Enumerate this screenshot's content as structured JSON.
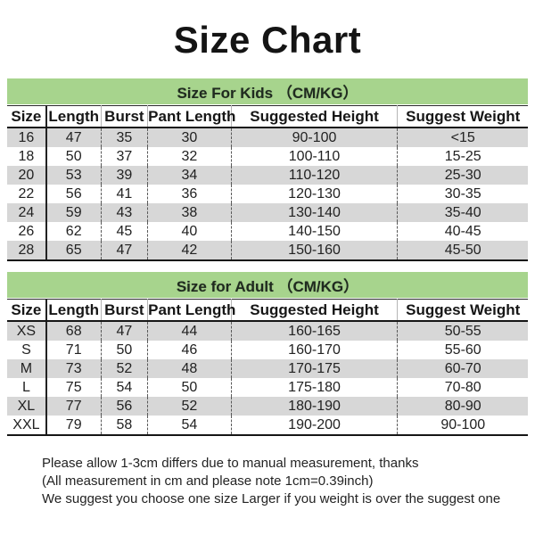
{
  "page": {
    "title": "Size Chart"
  },
  "colors": {
    "section_header_bg": "#a7d48d",
    "row_stripe_bg": "#d7d7d7",
    "text": "#1b1b1b"
  },
  "tables": [
    {
      "id": "kids",
      "section_title": "Size For Kids （CM/KG）",
      "columns": [
        "Size",
        "Length",
        "Burst",
        "Pant Length",
        "Suggested Height",
        "Suggest Weight"
      ],
      "rows": [
        [
          "16",
          "47",
          "35",
          "30",
          "90-100",
          "<15"
        ],
        [
          "18",
          "50",
          "37",
          "32",
          "100-110",
          "15-25"
        ],
        [
          "20",
          "53",
          "39",
          "34",
          "110-120",
          "25-30"
        ],
        [
          "22",
          "56",
          "41",
          "36",
          "120-130",
          "30-35"
        ],
        [
          "24",
          "59",
          "43",
          "38",
          "130-140",
          "35-40"
        ],
        [
          "26",
          "62",
          "45",
          "40",
          "140-150",
          "40-45"
        ],
        [
          "28",
          "65",
          "47",
          "42",
          "150-160",
          "45-50"
        ]
      ]
    },
    {
      "id": "adult",
      "section_title": "Size for Adult （CM/KG）",
      "columns": [
        "Size",
        "Length",
        "Burst",
        "Pant Length",
        "Suggested Height",
        "Suggest Weight"
      ],
      "rows": [
        [
          "XS",
          "68",
          "47",
          "44",
          "160-165",
          "50-55"
        ],
        [
          "S",
          "71",
          "50",
          "46",
          "160-170",
          "55-60"
        ],
        [
          "M",
          "73",
          "52",
          "48",
          "170-175",
          "60-70"
        ],
        [
          "L",
          "75",
          "54",
          "50",
          "175-180",
          "70-80"
        ],
        [
          "XL",
          "77",
          "56",
          "52",
          "180-190",
          "80-90"
        ],
        [
          "XXL",
          "79",
          "58",
          "54",
          "190-200",
          "90-100"
        ]
      ]
    }
  ],
  "notes": [
    "Please allow 1-3cm differs due to manual measurement, thanks",
    "(All measurement in cm and please note 1cm=0.39inch)",
    "We suggest you choose one size Larger if you weight is over the suggest one"
  ]
}
